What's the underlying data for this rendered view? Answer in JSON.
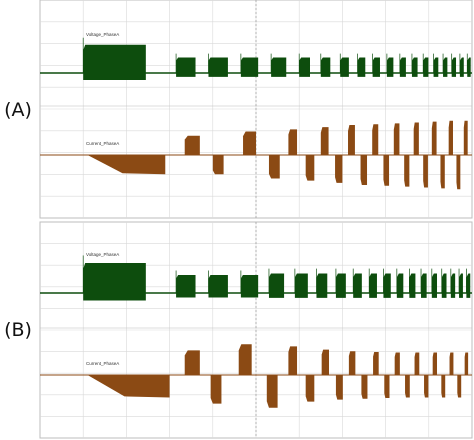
{
  "colors": {
    "voltage": "#0d4d0d",
    "current": "#8b4a14",
    "grid": "#d9d9d9",
    "border": "#bdbdbd",
    "cursor": "#9a9a9a"
  },
  "chart_data": [
    {
      "type": "line",
      "panel_label": "(A)",
      "title": "",
      "grid": true,
      "series": [
        {
          "name": "Voltage_PhaseA",
          "color": "#0d4d0d",
          "baseline": 0,
          "ylim": [
            -1.2,
            1.2
          ],
          "bursts": [
            [
              0.1,
              0.245,
              1.0
            ],
            [
              0.315,
              0.36,
              0.55
            ],
            [
              0.39,
              0.435,
              0.55
            ],
            [
              0.465,
              0.505,
              0.55
            ],
            [
              0.535,
              0.57,
              0.55
            ],
            [
              0.6,
              0.625,
              0.55
            ],
            [
              0.65,
              0.672,
              0.55
            ],
            [
              0.695,
              0.715,
              0.55
            ],
            [
              0.735,
              0.753,
              0.55
            ],
            [
              0.77,
              0.787,
              0.55
            ],
            [
              0.803,
              0.818,
              0.55
            ],
            [
              0.833,
              0.847,
              0.55
            ],
            [
              0.861,
              0.874,
              0.55
            ],
            [
              0.887,
              0.899,
              0.55
            ],
            [
              0.911,
              0.922,
              0.55
            ],
            [
              0.933,
              0.943,
              0.55
            ],
            [
              0.953,
              0.963,
              0.55
            ],
            [
              0.972,
              0.981,
              0.55
            ],
            [
              0.989,
              0.997,
              0.55
            ]
          ]
        },
        {
          "name": "Current_PhaseA",
          "color": "#8b4a14",
          "baseline": 0,
          "ylim": [
            -1.2,
            1.2
          ],
          "events": [
            {
              "x0": 0.11,
              "x1": 0.29,
              "shape": "ramp",
              "a0": 0.0,
              "a1": -0.45
            },
            {
              "x0": 0.335,
              "x1": 0.37,
              "shape": "pos",
              "a": 0.45
            },
            {
              "x0": 0.4,
              "x1": 0.425,
              "shape": "neg",
              "a": -0.45
            },
            {
              "x0": 0.47,
              "x1": 0.5,
              "shape": "pos",
              "a": 0.55
            },
            {
              "x0": 0.53,
              "x1": 0.555,
              "shape": "neg",
              "a": -0.55
            },
            {
              "x0": 0.575,
              "x1": 0.595,
              "shape": "pos",
              "a": 0.6
            },
            {
              "x0": 0.615,
              "x1": 0.635,
              "shape": "neg",
              "a": -0.6
            },
            {
              "x0": 0.65,
              "x1": 0.668,
              "shape": "pos",
              "a": 0.65
            },
            {
              "x0": 0.683,
              "x1": 0.7,
              "shape": "neg",
              "a": -0.65
            },
            {
              "x0": 0.713,
              "x1": 0.729,
              "shape": "pos",
              "a": 0.7
            },
            {
              "x0": 0.742,
              "x1": 0.757,
              "shape": "neg",
              "a": -0.7
            },
            {
              "x0": 0.769,
              "x1": 0.783,
              "shape": "pos",
              "a": 0.72
            },
            {
              "x0": 0.795,
              "x1": 0.808,
              "shape": "neg",
              "a": -0.72
            },
            {
              "x0": 0.819,
              "x1": 0.832,
              "shape": "pos",
              "a": 0.74
            },
            {
              "x0": 0.843,
              "x1": 0.855,
              "shape": "neg",
              "a": -0.74
            },
            {
              "x0": 0.865,
              "x1": 0.877,
              "shape": "pos",
              "a": 0.76
            },
            {
              "x0": 0.887,
              "x1": 0.898,
              "shape": "neg",
              "a": -0.76
            },
            {
              "x0": 0.907,
              "x1": 0.918,
              "shape": "pos",
              "a": 0.78
            },
            {
              "x0": 0.927,
              "x1": 0.937,
              "shape": "neg",
              "a": -0.78
            },
            {
              "x0": 0.946,
              "x1": 0.956,
              "shape": "pos",
              "a": 0.8
            },
            {
              "x0": 0.964,
              "x1": 0.973,
              "shape": "neg",
              "a": -0.8
            },
            {
              "x0": 0.981,
              "x1": 0.99,
              "shape": "pos",
              "a": 0.8
            }
          ]
        }
      ]
    },
    {
      "type": "line",
      "panel_label": "(B)",
      "title": "",
      "grid": true,
      "series": [
        {
          "name": "Voltage_PhaseA",
          "color": "#0d4d0d",
          "baseline": 0,
          "ylim": [
            -1.2,
            1.2
          ],
          "bursts": [
            [
              0.1,
              0.245,
              1.0
            ],
            [
              0.315,
              0.36,
              0.6
            ],
            [
              0.39,
              0.435,
              0.6
            ],
            [
              0.465,
              0.505,
              0.6
            ],
            [
              0.53,
              0.565,
              0.65
            ],
            [
              0.59,
              0.62,
              0.65
            ],
            [
              0.64,
              0.665,
              0.65
            ],
            [
              0.685,
              0.708,
              0.65
            ],
            [
              0.725,
              0.745,
              0.65
            ],
            [
              0.762,
              0.78,
              0.65
            ],
            [
              0.795,
              0.812,
              0.65
            ],
            [
              0.826,
              0.841,
              0.65
            ],
            [
              0.855,
              0.869,
              0.65
            ],
            [
              0.882,
              0.895,
              0.65
            ],
            [
              0.907,
              0.919,
              0.65
            ],
            [
              0.93,
              0.941,
              0.65
            ],
            [
              0.951,
              0.961,
              0.65
            ],
            [
              0.97,
              0.979,
              0.65
            ],
            [
              0.987,
              0.996,
              0.65
            ]
          ]
        },
        {
          "name": "Current_PhaseA",
          "color": "#8b4a14",
          "baseline": 0,
          "ylim": [
            -1.2,
            1.2
          ],
          "events": [
            {
              "x0": 0.11,
              "x1": 0.3,
              "shape": "ramp",
              "a0": 0.0,
              "a1": -0.55
            },
            {
              "x0": 0.335,
              "x1": 0.37,
              "shape": "pos",
              "a": 0.6
            },
            {
              "x0": 0.395,
              "x1": 0.42,
              "shape": "neg",
              "a": -0.7
            },
            {
              "x0": 0.46,
              "x1": 0.49,
              "shape": "pos",
              "a": 0.75
            },
            {
              "x0": 0.525,
              "x1": 0.55,
              "shape": "neg",
              "a": -0.8
            },
            {
              "x0": 0.575,
              "x1": 0.595,
              "shape": "pos",
              "a": 0.7
            },
            {
              "x0": 0.615,
              "x1": 0.635,
              "shape": "neg",
              "a": -0.65
            },
            {
              "x0": 0.652,
              "x1": 0.669,
              "shape": "pos",
              "a": 0.62
            },
            {
              "x0": 0.685,
              "x1": 0.701,
              "shape": "neg",
              "a": -0.6
            },
            {
              "x0": 0.715,
              "x1": 0.73,
              "shape": "pos",
              "a": 0.58
            },
            {
              "x0": 0.744,
              "x1": 0.758,
              "shape": "neg",
              "a": -0.58
            },
            {
              "x0": 0.771,
              "x1": 0.784,
              "shape": "pos",
              "a": 0.56
            },
            {
              "x0": 0.797,
              "x1": 0.809,
              "shape": "neg",
              "a": -0.56
            },
            {
              "x0": 0.821,
              "x1": 0.833,
              "shape": "pos",
              "a": 0.55
            },
            {
              "x0": 0.845,
              "x1": 0.856,
              "shape": "neg",
              "a": -0.55
            },
            {
              "x0": 0.867,
              "x1": 0.878,
              "shape": "pos",
              "a": 0.55
            },
            {
              "x0": 0.889,
              "x1": 0.899,
              "shape": "neg",
              "a": -0.55
            },
            {
              "x0": 0.909,
              "x1": 0.919,
              "shape": "pos",
              "a": 0.55
            },
            {
              "x0": 0.929,
              "x1": 0.938,
              "shape": "neg",
              "a": -0.55
            },
            {
              "x0": 0.948,
              "x1": 0.957,
              "shape": "pos",
              "a": 0.55
            },
            {
              "x0": 0.966,
              "x1": 0.975,
              "shape": "neg",
              "a": -0.55
            },
            {
              "x0": 0.983,
              "x1": 0.991,
              "shape": "pos",
              "a": 0.55
            }
          ]
        }
      ]
    }
  ]
}
